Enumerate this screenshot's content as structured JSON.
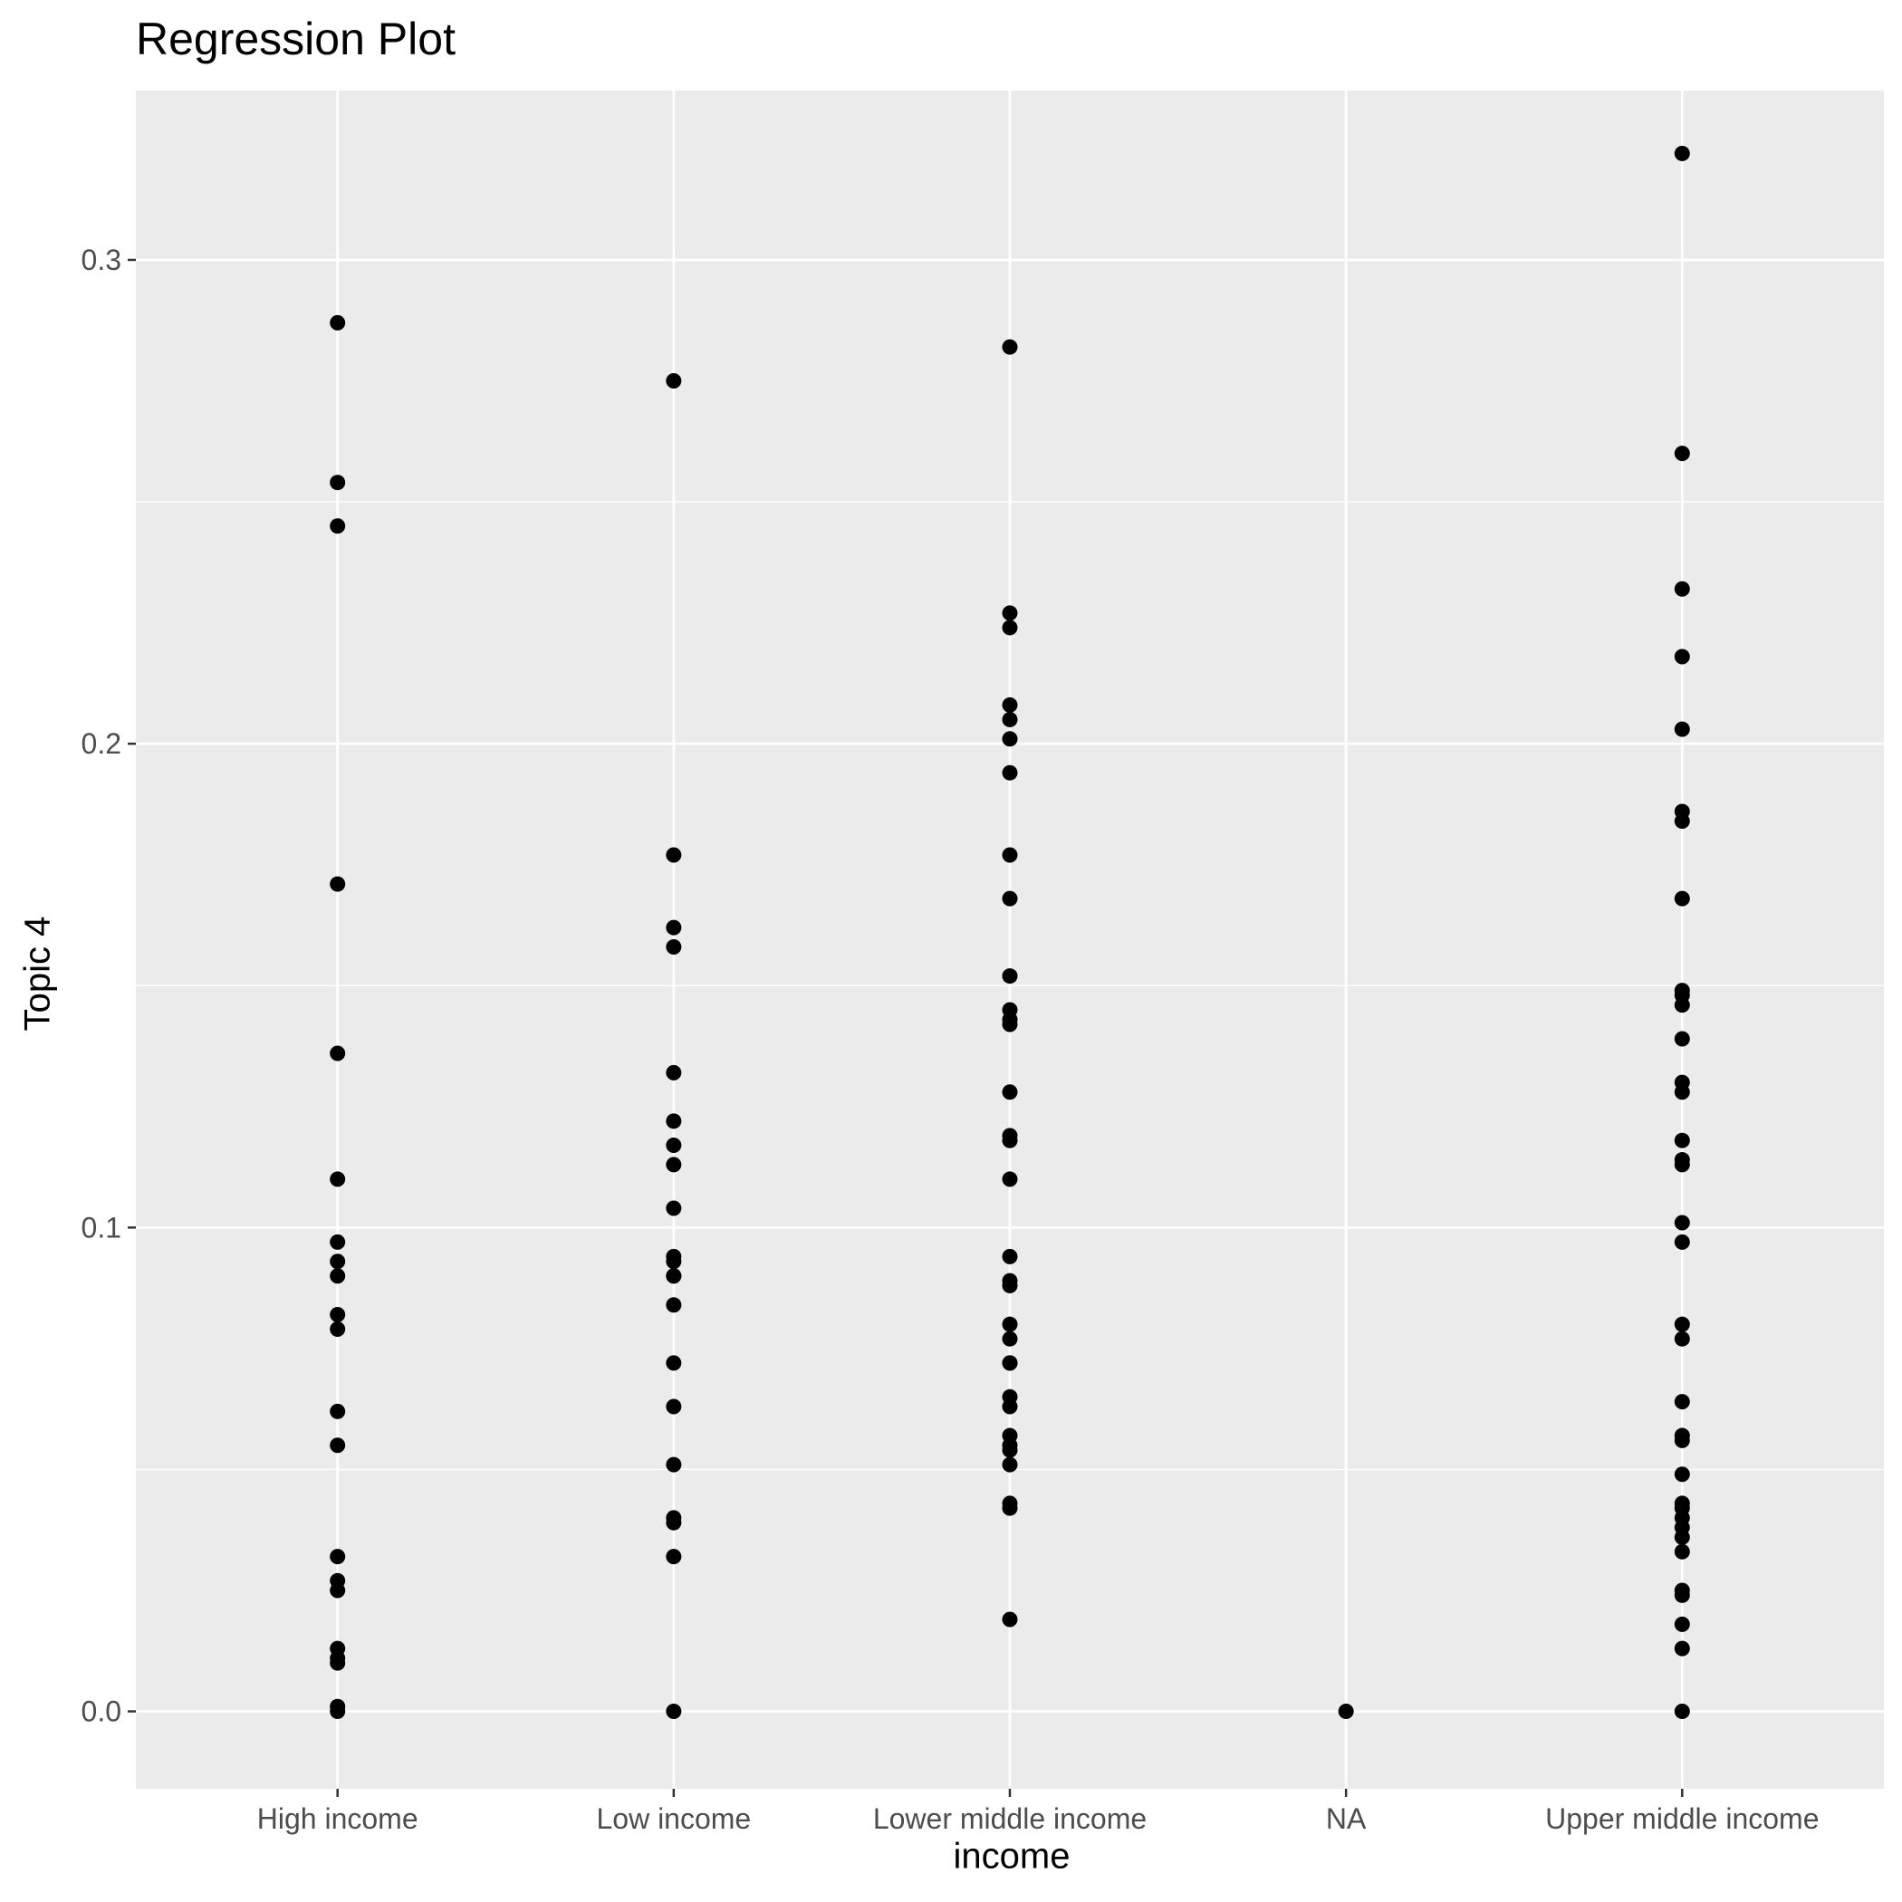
{
  "chart_data": {
    "type": "scatter",
    "title": "Regression Plot",
    "xlabel": "income",
    "ylabel": "Topic 4",
    "categories": [
      "High income",
      "Low income",
      "Lower middle income",
      "NA",
      "Upper middle income"
    ],
    "ylim": [
      -0.016,
      0.335
    ],
    "yticks": [
      0.0,
      0.1,
      0.2,
      0.3
    ],
    "ytick_labels": [
      "0.0",
      "0.1",
      "0.2",
      "0.3"
    ],
    "grid": true,
    "legend": "none",
    "colors": {
      "panel": "#ebebeb",
      "grid": "#ffffff",
      "point": "#000000",
      "tick": "#333333",
      "tick_text": "#4d4d4d"
    },
    "series": [
      {
        "category": "High income",
        "values": [
          0.287,
          0.254,
          0.245,
          0.171,
          0.136,
          0.11,
          0.097,
          0.093,
          0.09,
          0.082,
          0.079,
          0.062,
          0.055,
          0.032,
          0.027,
          0.025,
          0.013,
          0.011,
          0.01,
          0.001,
          0.0
        ]
      },
      {
        "category": "Low income",
        "values": [
          0.275,
          0.177,
          0.162,
          0.158,
          0.132,
          0.122,
          0.117,
          0.113,
          0.104,
          0.094,
          0.093,
          0.09,
          0.09,
          0.084,
          0.072,
          0.063,
          0.051,
          0.04,
          0.039,
          0.032,
          0.0
        ]
      },
      {
        "category": "Lower middle income",
        "values": [
          0.282,
          0.227,
          0.224,
          0.208,
          0.205,
          0.201,
          0.194,
          0.177,
          0.168,
          0.152,
          0.145,
          0.143,
          0.142,
          0.128,
          0.119,
          0.118,
          0.11,
          0.094,
          0.089,
          0.088,
          0.08,
          0.077,
          0.072,
          0.072,
          0.065,
          0.063,
          0.057,
          0.055,
          0.054,
          0.051,
          0.043,
          0.042,
          0.019
        ]
      },
      {
        "category": "NA",
        "values": [
          0.0
        ]
      },
      {
        "category": "Upper middle income",
        "values": [
          0.322,
          0.26,
          0.232,
          0.218,
          0.203,
          0.186,
          0.184,
          0.168,
          0.149,
          0.148,
          0.146,
          0.139,
          0.13,
          0.128,
          0.118,
          0.114,
          0.113,
          0.101,
          0.097,
          0.08,
          0.077,
          0.064,
          0.057,
          0.056,
          0.049,
          0.043,
          0.042,
          0.04,
          0.038,
          0.036,
          0.033,
          0.025,
          0.024,
          0.018,
          0.013,
          0.0
        ]
      }
    ]
  }
}
